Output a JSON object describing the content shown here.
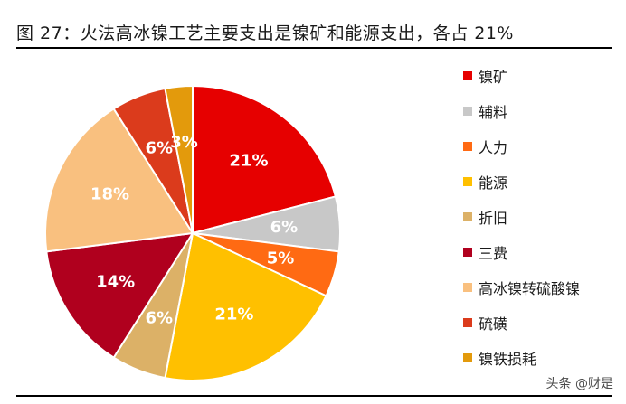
{
  "title": "图  27：火法高冰镍工艺主要支出是镍矿和能源支出，各占 21%",
  "watermark": "头条 @财是",
  "chart_data": {
    "type": "pie",
    "title": "",
    "legend_position": "right",
    "categories": [
      "镍矿",
      "辅料",
      "人力",
      "能源",
      "折旧",
      "三费",
      "高冰镍转硫酸镍",
      "硫磺",
      "镍铁损耗"
    ],
    "values": [
      21,
      6,
      5,
      21,
      6,
      14,
      18,
      6,
      3
    ],
    "labels": [
      "21%",
      "6%",
      "5%",
      "21%",
      "6%",
      "14%",
      "18%",
      "6%",
      "3%"
    ],
    "colors": [
      "#e60000",
      "#c8c8c8",
      "#ff6a13",
      "#ffc000",
      "#dcb167",
      "#b0001e",
      "#f9c07f",
      "#db3b1c",
      "#e39a0c"
    ]
  }
}
